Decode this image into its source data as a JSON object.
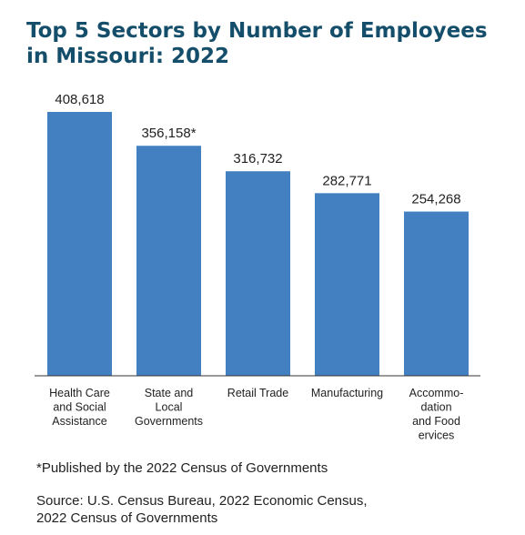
{
  "title_lines": [
    "Top 5 Sectors by Number of Employees",
    "in Missouri: 2022"
  ],
  "colors": {
    "title": "#154e6a",
    "bar": "#4380c2",
    "text": "#222222"
  },
  "chart_data": {
    "type": "bar",
    "title": "Top 5 Sectors by Number of Employees in Missouri: 2022",
    "categories": [
      [
        "Health Care",
        "and Social",
        "Assistance"
      ],
      [
        "State and",
        "Local",
        "Governments"
      ],
      [
        "Retail Trade"
      ],
      [
        "Manufacturing"
      ],
      [
        "Accommo-",
        "dation",
        "and Food",
        "ervices"
      ]
    ],
    "values": [
      408618,
      356158,
      316732,
      282771,
      254268
    ],
    "data_labels": [
      "408,618",
      "356,158*",
      "316,732",
      "282,771",
      "254,268"
    ],
    "ylim": [
      0,
      408618
    ],
    "grid": false,
    "legend": "none",
    "xlabel": "",
    "ylabel": ""
  },
  "footnote": "*Published by the 2022 Census of Governments",
  "source_lines": [
    "Source: U.S. Census Bureau, 2022 Economic Census,",
    "2022 Census of Governments"
  ]
}
